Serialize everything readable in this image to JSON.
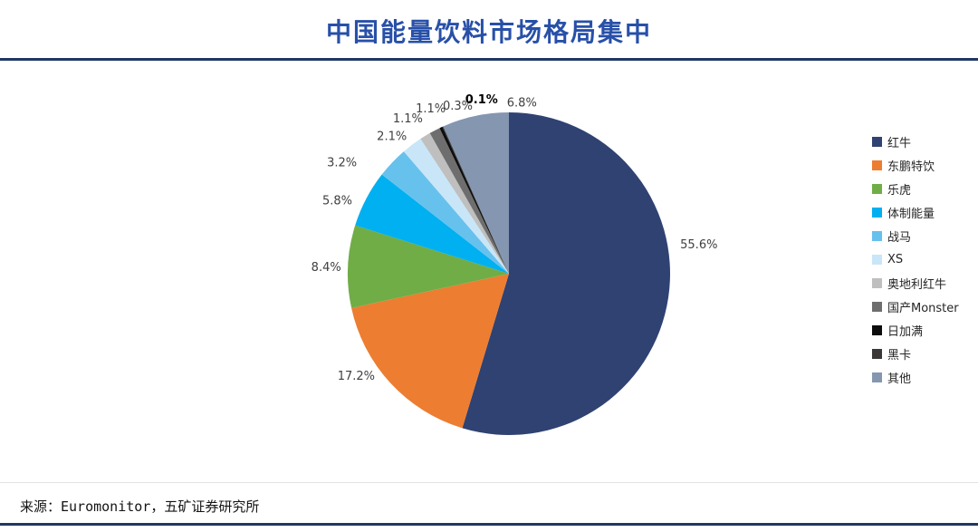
{
  "source_note": "来源：Euromonitor，五矿证券研究所",
  "chart_data": {
    "type": "pie",
    "title": "中国能量饮料市场格局集中",
    "legend_position": "right",
    "value_suffix": "%",
    "series": [
      {
        "name": "红牛",
        "value": 55.6,
        "label": "55.6%",
        "color": "#2F4272"
      },
      {
        "name": "东鹏特饮",
        "value": 17.2,
        "label": "17.2%",
        "color": "#ED7D31"
      },
      {
        "name": "乐虎",
        "value": 8.4,
        "label": "8.4%",
        "color": "#70AD47"
      },
      {
        "name": "体制能量",
        "value": 5.8,
        "label": "5.8%",
        "color": "#00B0F0"
      },
      {
        "name": "战马",
        "value": 3.2,
        "label": "3.2%",
        "color": "#67C1ED"
      },
      {
        "name": "XS",
        "value": 2.1,
        "label": "2.1%",
        "color": "#C9E6F8"
      },
      {
        "name": "奥地利红牛",
        "value": 1.1,
        "label": "1.1%",
        "color": "#BFBFBF"
      },
      {
        "name": "国产Monster",
        "value": 1.1,
        "label": "1.1%",
        "color": "#6E6E6E"
      },
      {
        "name": "日加满",
        "value": 0.3,
        "label": "0.3%",
        "color": "#0D0D0D"
      },
      {
        "name": "黑卡",
        "value": 0.1,
        "label": "0.1%",
        "color": "#3B3838"
      },
      {
        "name": "其他",
        "value": 6.8,
        "label": "6.8%",
        "color": "#8496B0"
      }
    ]
  }
}
